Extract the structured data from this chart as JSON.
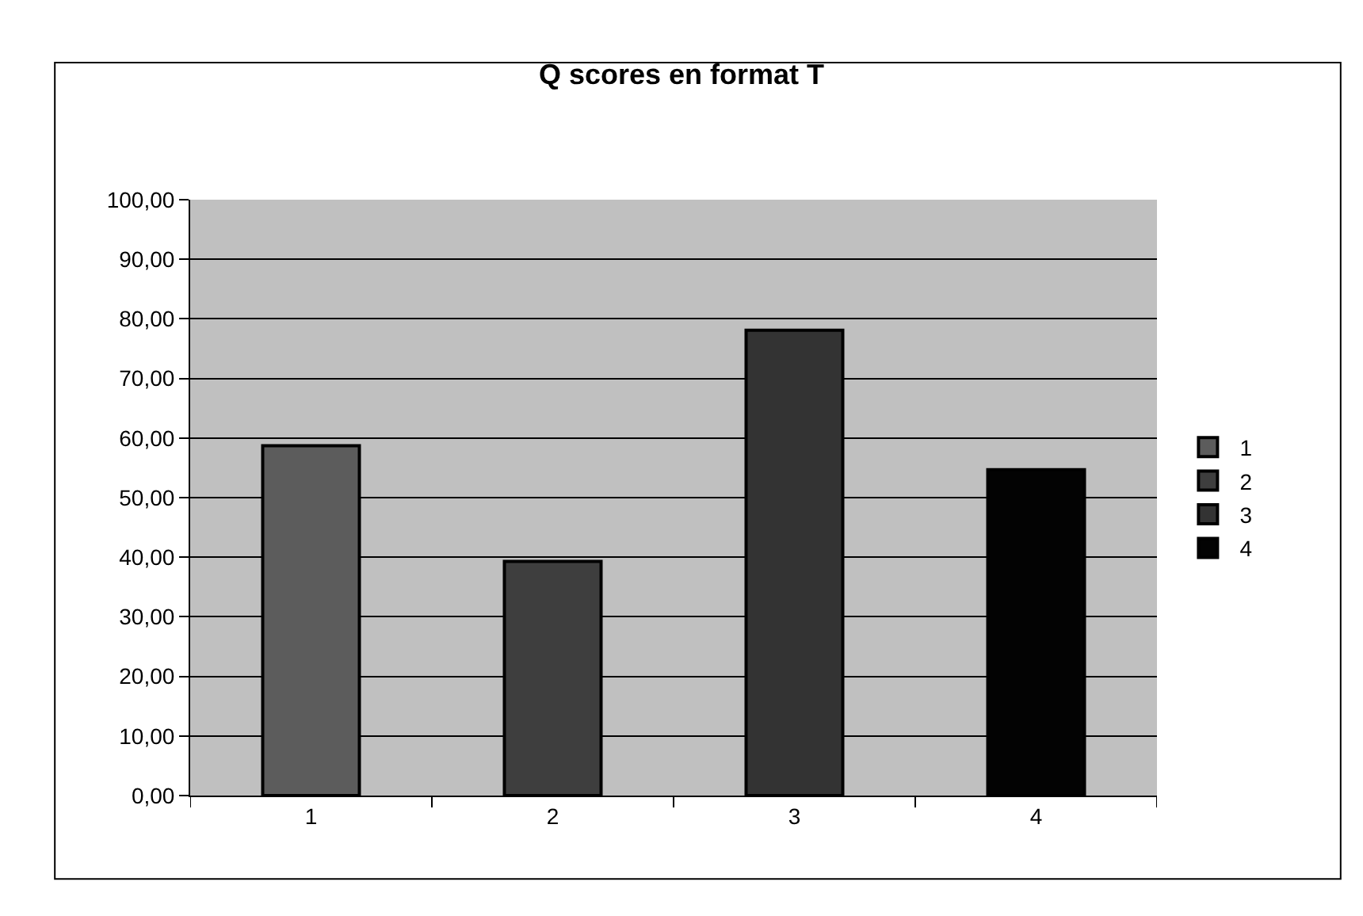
{
  "chart_data": {
    "type": "bar",
    "title": "Q scores en format T",
    "categories": [
      "1",
      "2",
      "3",
      "4"
    ],
    "series": [
      {
        "name": "1",
        "color": "#5c5c5c",
        "values": [
          58.7,
          null,
          null,
          null
        ]
      },
      {
        "name": "2",
        "color": "#3e3e3e",
        "values": [
          null,
          39.3,
          null,
          null
        ]
      },
      {
        "name": "3",
        "color": "#333333",
        "values": [
          null,
          null,
          78.1,
          null
        ]
      },
      {
        "name": "4",
        "color": "#030303",
        "values": [
          null,
          null,
          null,
          54.7
        ]
      }
    ],
    "ylim": [
      0,
      100
    ],
    "yticks": [
      {
        "value": 0,
        "label": "0,00"
      },
      {
        "value": 10,
        "label": "10,00"
      },
      {
        "value": 20,
        "label": "20,00"
      },
      {
        "value": 30,
        "label": "30,00"
      },
      {
        "value": 40,
        "label": "40,00"
      },
      {
        "value": 50,
        "label": "50,00"
      },
      {
        "value": 60,
        "label": "60,00"
      },
      {
        "value": 70,
        "label": "70,00"
      },
      {
        "value": 80,
        "label": "80,00"
      },
      {
        "value": 90,
        "label": "90,00"
      },
      {
        "value": 100,
        "label": "100,00"
      }
    ],
    "grid": "y",
    "legend": "right"
  }
}
